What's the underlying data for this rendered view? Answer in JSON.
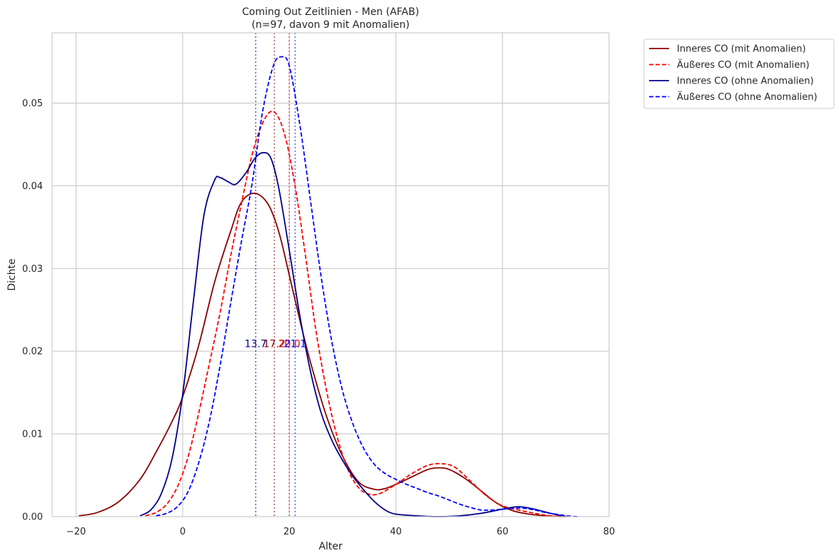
{
  "chart_data": {
    "type": "line",
    "title": "Coming Out Zeitlinien - Men (AFAB)",
    "subtitle": "(n=97, davon 9 mit Anomalien)",
    "xlabel": "Alter",
    "ylabel": "Dichte",
    "xlim": [
      -24.5,
      80
    ],
    "ylim": [
      0,
      0.0585
    ],
    "x_ticks": [
      -20,
      0,
      20,
      40,
      60,
      80
    ],
    "y_ticks": [
      0.0,
      0.01,
      0.02,
      0.03,
      0.04,
      0.05
    ],
    "x_tick_labels": [
      "−20",
      "0",
      "20",
      "40",
      "60",
      "80"
    ],
    "y_tick_labels": [
      "0.00",
      "0.01",
      "0.02",
      "0.03",
      "0.04",
      "0.05"
    ],
    "grid": true,
    "legend_position": "outside-top-right",
    "series": [
      {
        "name": "Inneres CO (mit Anomalien)",
        "color": "#8b0000",
        "dash": "solid",
        "x": [
          -19.5,
          -16,
          -12,
          -8,
          -5,
          -2,
          0,
          3,
          6,
          9,
          11,
          13.5,
          16,
          18,
          20,
          22,
          24,
          27,
          30,
          33,
          36,
          38,
          40,
          43,
          46,
          48,
          50,
          53,
          56,
          59,
          62,
          65,
          68,
          71
        ],
        "y": [
          0.0001,
          0.0005,
          0.0018,
          0.0045,
          0.0078,
          0.0115,
          0.0145,
          0.0207,
          0.0284,
          0.0345,
          0.038,
          0.0391,
          0.0378,
          0.0345,
          0.0292,
          0.0237,
          0.0186,
          0.0121,
          0.0073,
          0.0042,
          0.0033,
          0.0034,
          0.0039,
          0.0048,
          0.0057,
          0.0059,
          0.0057,
          0.0046,
          0.0031,
          0.0016,
          0.0007,
          0.0003,
          0.0001,
          0.0
        ]
      },
      {
        "name": "Äußeres CO (mit Anomalien)",
        "color": "#ff0000",
        "dash": "dashed",
        "x": [
          -7,
          -5,
          -3,
          -1,
          1,
          3,
          5,
          7,
          9,
          11,
          13,
          15,
          17,
          19,
          21,
          23,
          25,
          27,
          29,
          31,
          33,
          35,
          37,
          40,
          43,
          46,
          48.5,
          51,
          54,
          57,
          60,
          63,
          66,
          69,
          72
        ],
        "y": [
          0.0001,
          0.0005,
          0.0015,
          0.0036,
          0.0072,
          0.0125,
          0.0185,
          0.0246,
          0.0315,
          0.0378,
          0.0437,
          0.0476,
          0.049,
          0.0465,
          0.0403,
          0.0317,
          0.0225,
          0.0152,
          0.0096,
          0.0057,
          0.0035,
          0.0027,
          0.0028,
          0.0039,
          0.0052,
          0.0062,
          0.0064,
          0.006,
          0.0043,
          0.0025,
          0.0013,
          0.0008,
          0.0004,
          0.0001,
          0.0
        ]
      },
      {
        "name": "Inneres CO (ohne Anomalien)",
        "color": "#00008b",
        "dash": "solid",
        "x": [
          -8,
          -6,
          -4,
          -2,
          0,
          2,
          4,
          6,
          7,
          8.5,
          10,
          12,
          13.5,
          15,
          16.5,
          18,
          20,
          22,
          24,
          26,
          28,
          30,
          32,
          34,
          36,
          38,
          40,
          44,
          48,
          52,
          56,
          60,
          63,
          66,
          69,
          72
        ],
        "y": [
          0.0001,
          0.0008,
          0.0028,
          0.007,
          0.0148,
          0.026,
          0.0365,
          0.0407,
          0.041,
          0.0405,
          0.0402,
          0.0417,
          0.0433,
          0.044,
          0.0434,
          0.0398,
          0.0322,
          0.0242,
          0.0175,
          0.0125,
          0.0092,
          0.0068,
          0.0048,
          0.0032,
          0.0018,
          0.0008,
          0.0003,
          0.0001,
          0.0,
          0.0001,
          0.0004,
          0.0009,
          0.0012,
          0.0009,
          0.0004,
          0.0
        ]
      },
      {
        "name": "Äußeres CO (ohne Anomalien)",
        "color": "#0000ff",
        "dash": "dashed",
        "x": [
          -5,
          -3,
          -1,
          1,
          3,
          5,
          7,
          9,
          11,
          13,
          15,
          17,
          18.5,
          20,
          22,
          24,
          26,
          28,
          30,
          32,
          34,
          36,
          38,
          40,
          42,
          44,
          46,
          48,
          50,
          52,
          54,
          56,
          58,
          60,
          62,
          64,
          66,
          68,
          70,
          72,
          74
        ],
        "y": [
          0.0001,
          0.0004,
          0.0012,
          0.003,
          0.0065,
          0.0115,
          0.0182,
          0.0258,
          0.0332,
          0.0402,
          0.049,
          0.0545,
          0.0556,
          0.0545,
          0.0473,
          0.0381,
          0.0289,
          0.0211,
          0.0152,
          0.0111,
          0.0082,
          0.0063,
          0.0052,
          0.0045,
          0.0039,
          0.0034,
          0.0029,
          0.0025,
          0.002,
          0.0015,
          0.0011,
          0.0008,
          0.0008,
          0.0009,
          0.001,
          0.001,
          0.0008,
          0.0005,
          0.0003,
          0.0001,
          0.0
        ]
      }
    ],
    "median_lines": [
      {
        "x": 13.7,
        "color": "#00008b",
        "label": "13.7",
        "label_y": 0.0205
      },
      {
        "x": 17.2,
        "color": "#8b0000",
        "label": "17.2",
        "label_y": 0.0205
      },
      {
        "x": 20.0,
        "color": "#ff0000",
        "label": "20.0",
        "label_y": 0.0205
      },
      {
        "x": 21.1,
        "color": "#0000ff",
        "label": "21.1",
        "label_y": 0.0205
      }
    ]
  }
}
